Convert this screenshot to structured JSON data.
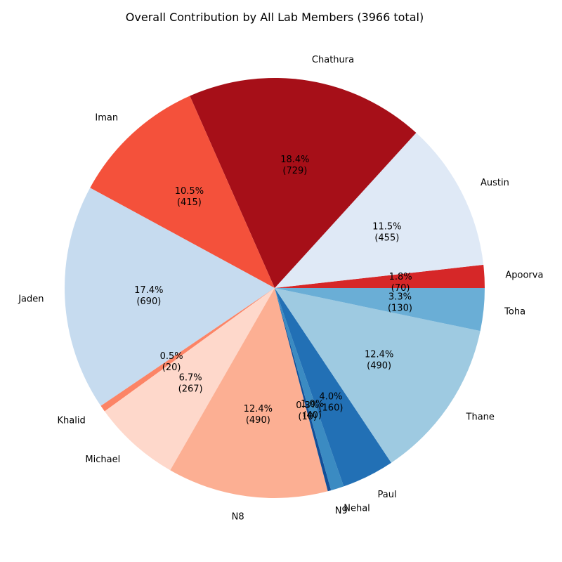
{
  "chart_data": {
    "type": "pie",
    "title": "Overall Contribution by All Lab Members (3966 total)",
    "total": 3966,
    "start_angle_deg": 0,
    "direction": "counterclockwise",
    "slices": [
      {
        "label": "Apoorva",
        "value": 70,
        "percent_text": "1.8%",
        "value_text": "(70)",
        "color": "#d62728"
      },
      {
        "label": "Austin",
        "value": 455,
        "percent_text": "11.5%",
        "value_text": "(455)",
        "color": "#dfe9f6"
      },
      {
        "label": "Chathura",
        "value": 729,
        "percent_text": "18.4%",
        "value_text": "(729)",
        "color": "#a60f18"
      },
      {
        "label": "Iman",
        "value": 415,
        "percent_text": "10.5%",
        "value_text": "(415)",
        "color": "#f4513b"
      },
      {
        "label": "Jaden",
        "value": 690,
        "percent_text": "17.4%",
        "value_text": "(690)",
        "color": "#c6dbef"
      },
      {
        "label": "Khalid",
        "value": 20,
        "percent_text": "0.5%",
        "value_text": "(20)",
        "color": "#fc8466"
      },
      {
        "label": "Michael",
        "value": 267,
        "percent_text": "6.7%",
        "value_text": "(267)",
        "color": "#fed8cb"
      },
      {
        "label": "N8",
        "value": 490,
        "percent_text": "12.4%",
        "value_text": "(490)",
        "color": "#fcaf93"
      },
      {
        "label": "N9",
        "value": 10,
        "percent_text": "0.3%",
        "value_text": "(10)",
        "color": "#114f99"
      },
      {
        "label": "Nehal",
        "value": 40,
        "percent_text": "1.0%",
        "value_text": "(40)",
        "color": "#3b8bc2"
      },
      {
        "label": "Paul",
        "value": 160,
        "percent_text": "4.0%",
        "value_text": "(160)",
        "color": "#2270b5"
      },
      {
        "label": "Thane",
        "value": 490,
        "percent_text": "12.4%",
        "value_text": "(490)",
        "color": "#9ecae1"
      },
      {
        "label": "Toha",
        "value": 130,
        "percent_text": "3.3%",
        "value_text": "(130)",
        "color": "#6aaed6"
      }
    ]
  }
}
